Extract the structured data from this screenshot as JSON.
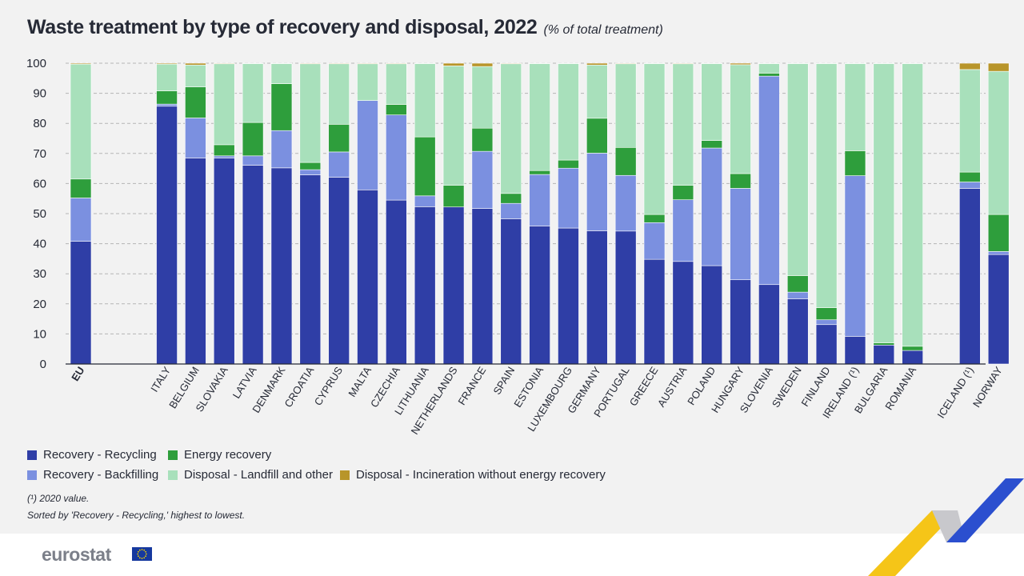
{
  "title": "Waste treatment by type of recovery and disposal, 2022",
  "subtitle": "(% of total treatment)",
  "legend": [
    {
      "label": "Recovery - Recycling",
      "color": "#2f3ea6"
    },
    {
      "label": "Energy recovery",
      "color": "#2e9e3c"
    },
    {
      "label": "Recovery - Backfilling",
      "color": "#7b90e0"
    },
    {
      "label": "Disposal - Landfill and other",
      "color": "#a8e0bb"
    },
    {
      "label": "Disposal - Incineration without energy recovery",
      "color": "#b8952a"
    }
  ],
  "notes": {
    "footnote": "(¹) 2020 value.",
    "sort_note": "Sorted by 'Recovery - Recycling,' highest to lowest."
  },
  "brand": {
    "logo_text": "eurostat",
    "flag_icon": "eu-flag-icon"
  },
  "chart_data": {
    "type": "bar",
    "stacked": true,
    "ylim": [
      0,
      100
    ],
    "yticks": [
      0,
      10,
      20,
      30,
      40,
      50,
      60,
      70,
      80,
      90,
      100
    ],
    "grid": "horizontal dashed",
    "categories": [
      "EU",
      "ITALY",
      "BELGIUM",
      "SLOVAKIA",
      "LATVIA",
      "DENMARK",
      "CROATIA",
      "CYPRUS",
      "MALTA",
      "CZECHIA",
      "LITHUANIA",
      "NETHERLANDS",
      "FRANCE",
      "SPAIN",
      "ESTONIA",
      "LUXEMBOURG",
      "GERMANY",
      "PORTUGAL",
      "GREECE",
      "AUSTRIA",
      "POLAND",
      "HUNGARY",
      "SLOVENIA",
      "SWEDEN",
      "FINLAND",
      "IRELAND (¹)",
      "BULGARIA",
      "ROMANIA",
      "ICELAND (¹)",
      "NORWAY"
    ],
    "groups": [
      [
        0,
        0
      ],
      [
        1,
        27
      ],
      [
        28,
        29
      ]
    ],
    "series": [
      {
        "name": "Recovery - Recycling",
        "color": "#2f3ea6",
        "values": [
          40.8,
          85.7,
          68.5,
          68.5,
          66.1,
          65.2,
          62.9,
          62.1,
          57.9,
          54.5,
          52.3,
          52.2,
          51.7,
          48.3,
          45.9,
          45.2,
          44.3,
          44.2,
          34.8,
          34.1,
          32.7,
          28.0,
          26.4,
          21.7,
          13.1,
          9.2,
          6.3,
          4.5,
          58.4,
          36.4
        ]
      },
      {
        "name": "Recovery - Backfilling",
        "color": "#7b90e0",
        "values": [
          14.4,
          0.7,
          13.3,
          0.7,
          3.1,
          12.4,
          1.7,
          8.4,
          29.7,
          28.3,
          3.6,
          0.0,
          19.0,
          5.1,
          17.1,
          19.9,
          25.8,
          18.5,
          12.2,
          20.5,
          39.1,
          30.4,
          69.3,
          2.2,
          1.6,
          53.4,
          0.0,
          0.0,
          2.1,
          1.0
        ]
      },
      {
        "name": "Energy recovery",
        "color": "#2e9e3c",
        "values": [
          6.3,
          4.4,
          10.3,
          3.7,
          11.1,
          15.6,
          2.4,
          9.2,
          0.0,
          3.5,
          19.6,
          7.2,
          7.7,
          3.3,
          1.3,
          2.7,
          11.6,
          9.3,
          2.7,
          4.8,
          2.5,
          4.9,
          1.0,
          5.5,
          4.0,
          8.3,
          0.7,
          1.4,
          3.3,
          12.3
        ]
      },
      {
        "name": "Disposal - Landfill and other",
        "color": "#a8e0bb",
        "values": [
          38.2,
          8.9,
          7.3,
          26.9,
          19.6,
          6.7,
          32.8,
          20.1,
          12.2,
          13.5,
          24.4,
          39.7,
          20.5,
          43.1,
          35.6,
          32.1,
          17.7,
          27.8,
          50.2,
          40.4,
          25.6,
          36.2,
          3.2,
          70.5,
          81.2,
          29.0,
          92.9,
          94.0,
          34.1,
          47.6
        ]
      },
      {
        "name": "Disposal - Incineration without energy recovery",
        "color": "#b8952a",
        "values": [
          0.3,
          0.3,
          0.6,
          0.2,
          0.1,
          0.1,
          0.2,
          0.2,
          0.2,
          0.2,
          0.1,
          0.9,
          1.1,
          0.2,
          0.1,
          0.1,
          0.6,
          0.2,
          0.1,
          0.2,
          0.1,
          0.5,
          0.1,
          0.1,
          0.1,
          0.1,
          0.1,
          0.1,
          2.1,
          2.7
        ]
      }
    ]
  }
}
